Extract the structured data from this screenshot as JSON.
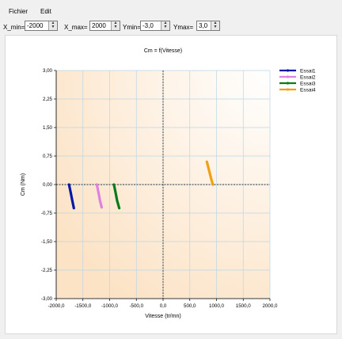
{
  "menu": {
    "items": [
      "Fichier",
      "Edit"
    ]
  },
  "toolbar": {
    "xmin_label": "X_min=",
    "xmin_value": "-2000",
    "xmax_label": "X_max=",
    "xmax_value": "2000",
    "ymin_label": "Ymin=",
    "ymin_value": "-3,0",
    "ymax_label": "Ymax=",
    "ymax_value": "3,0"
  },
  "chart_data": {
    "type": "line",
    "title": "Cm = f(Vitesse)",
    "xlabel": "Vitesse (tr/mn)",
    "ylabel": "Cm (Nm)",
    "xlim": [
      -2000,
      2000
    ],
    "ylim": [
      -3,
      3
    ],
    "x_ticks": [
      "-2000,0",
      "-1500,0",
      "-1000,0",
      "-500,0",
      "0,0",
      "500,0",
      "1000,0",
      "1500,0",
      "2000,0"
    ],
    "y_ticks": [
      "3,00",
      "2,25",
      "1,50",
      "0,75",
      "0,00",
      "-0,75",
      "-1,50",
      "-2,25",
      "-3,00"
    ],
    "grid": true,
    "legend_position": "top-right",
    "background_gradient": [
      "#fce3c6",
      "#ffffff"
    ],
    "series": [
      {
        "name": "Essai1",
        "color": "#0a18a8",
        "points": [
          [
            -1760,
            0.0
          ],
          [
            -1730,
            -0.2
          ],
          [
            -1700,
            -0.42
          ],
          [
            -1670,
            -0.62
          ]
        ]
      },
      {
        "name": "Essai2",
        "color": "#e080e0",
        "points": [
          [
            -1240,
            0.0
          ],
          [
            -1210,
            -0.2
          ],
          [
            -1180,
            -0.42
          ],
          [
            -1150,
            -0.6
          ]
        ]
      },
      {
        "name": "Essai3",
        "color": "#0a7a1a",
        "points": [
          [
            -920,
            0.0
          ],
          [
            -890,
            -0.2
          ],
          [
            -860,
            -0.42
          ],
          [
            -820,
            -0.62
          ]
        ]
      },
      {
        "name": "Essai4",
        "color": "#f0a010",
        "points": [
          [
            820,
            0.6
          ],
          [
            860,
            0.38
          ],
          [
            895,
            0.18
          ],
          [
            930,
            0.0
          ]
        ]
      }
    ]
  }
}
